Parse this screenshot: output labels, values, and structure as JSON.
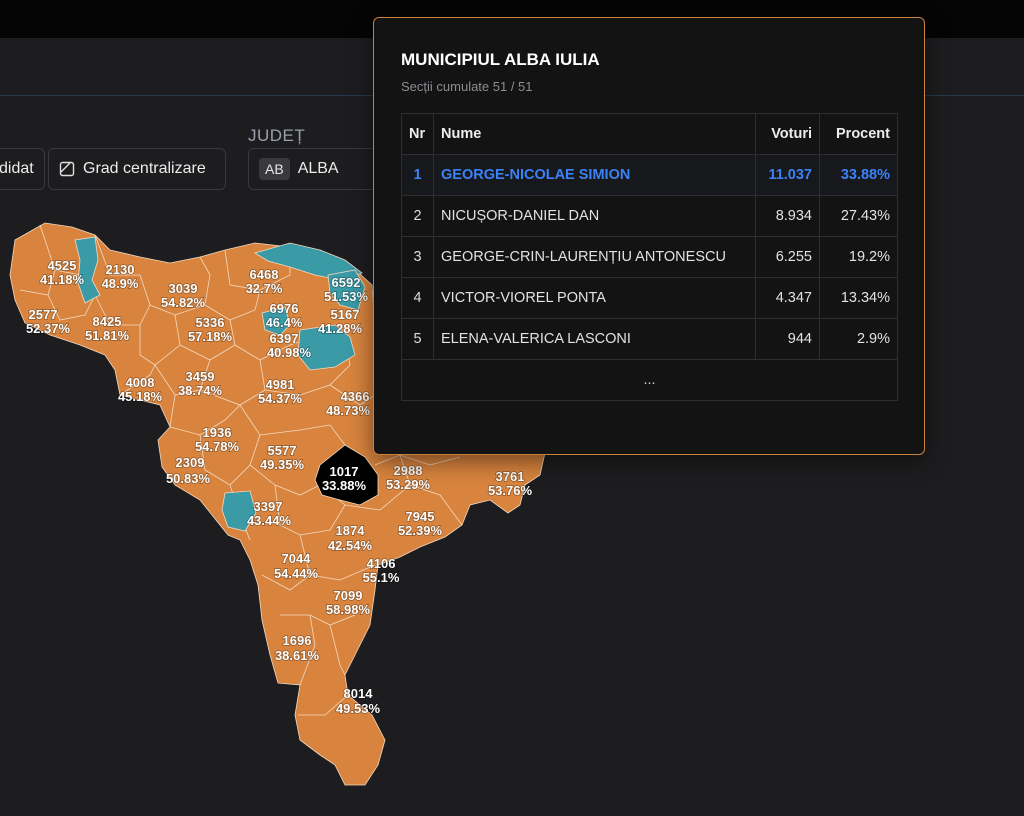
{
  "toolbar": {
    "candidate_chip": "didat",
    "grad_label": "Grad centralizare",
    "judet_label": "JUDEȚ",
    "judet_abbr": "AB",
    "judet_name": "ALBA"
  },
  "colors": {
    "leading_orange": "#d9843e",
    "leading_teal": "#3a9aa6",
    "selected_black": "#000000",
    "winner_blue": "#3b82f6",
    "tooltip_border": "#c9813b"
  },
  "map_labels": [
    {
      "votes": "4525",
      "pct": "41.18%"
    },
    {
      "votes": "2130",
      "pct": "48.9%"
    },
    {
      "votes": "3039",
      "pct": "54.82%"
    },
    {
      "votes": "6468",
      "pct": "32.7%"
    },
    {
      "votes": "6592",
      "pct": "51.53%"
    },
    {
      "votes": "2577",
      "pct": "52.37%"
    },
    {
      "votes": "8425",
      "pct": "51.81%"
    },
    {
      "votes": "5336",
      "pct": "57.18%"
    },
    {
      "votes": "6976",
      "pct": "46.4%"
    },
    {
      "votes": "5167",
      "pct": "41.28%"
    },
    {
      "votes": "6397",
      "pct": "40.98%"
    },
    {
      "votes": "4008",
      "pct": "45.18%"
    },
    {
      "votes": "3459",
      "pct": "38.74%"
    },
    {
      "votes": "4981",
      "pct": "54.37%"
    },
    {
      "votes": "4366",
      "pct": "48.73%"
    },
    {
      "votes": "1936",
      "pct": "54.78%"
    },
    {
      "votes": "5577",
      "pct": "49.35%"
    },
    {
      "votes": "1017",
      "pct": "33.88%"
    },
    {
      "votes": "2988",
      "pct": "53.29%"
    },
    {
      "votes": "3761",
      "pct": "53.76%"
    },
    {
      "votes": "2309",
      "pct": "50.83%"
    },
    {
      "votes": "3397",
      "pct": "43.44%"
    },
    {
      "votes": "7945",
      "pct": "52.39%"
    },
    {
      "votes": "1874",
      "pct": "42.54%"
    },
    {
      "votes": "7044",
      "pct": "54.44%"
    },
    {
      "votes": "4106",
      "pct": "55.1%"
    },
    {
      "votes": "7099",
      "pct": "58.98%"
    },
    {
      "votes": "1696",
      "pct": "38.61%"
    },
    {
      "votes": "8014",
      "pct": "49.53%"
    }
  ],
  "tooltip": {
    "title": "MUNICIPIUL ALBA IULIA",
    "subtitle": "Secții cumulate 51 / 51",
    "headers": {
      "nr": "Nr",
      "name": "Nume",
      "votes": "Voturi",
      "pct": "Procent"
    },
    "rows": [
      {
        "nr": "1",
        "name": "GEORGE-NICOLAE SIMION",
        "votes": "11.037",
        "pct": "33.88%"
      },
      {
        "nr": "2",
        "name": "NICUȘOR-DANIEL DAN",
        "votes": "8.934",
        "pct": "27.43%"
      },
      {
        "nr": "3",
        "name": "GEORGE-CRIN-LAURENȚIU ANTONESCU",
        "votes": "6.255",
        "pct": "19.2%"
      },
      {
        "nr": "4",
        "name": "VICTOR-VIOREL PONTA",
        "votes": "4.347",
        "pct": "13.34%"
      },
      {
        "nr": "5",
        "name": "ELENA-VALERICA LASCONI",
        "votes": "944",
        "pct": "2.9%"
      }
    ],
    "more": "..."
  }
}
